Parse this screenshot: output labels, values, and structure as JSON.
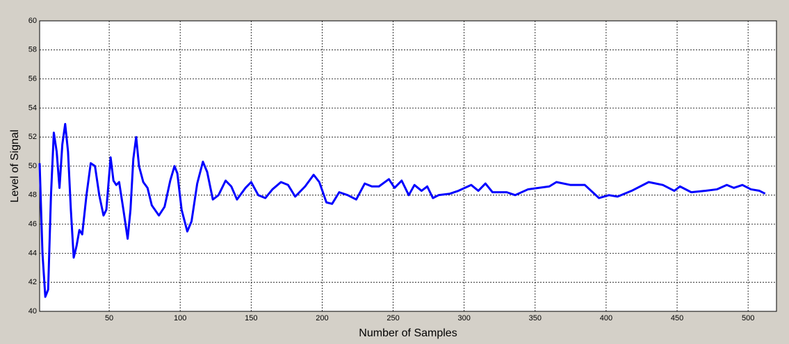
{
  "chart_data": {
    "type": "line",
    "x_label": "Number of Samples",
    "y_label": "Level of Signal",
    "x": [
      1,
      3,
      5,
      7,
      9,
      11,
      13,
      15,
      17,
      19,
      21,
      23,
      25,
      27,
      29,
      31,
      34,
      37,
      40,
      43,
      46,
      48,
      51,
      53,
      55,
      57,
      60,
      63,
      65,
      67,
      69,
      71,
      74,
      77,
      80,
      85,
      89,
      93,
      96,
      98,
      101,
      105,
      108,
      112,
      116,
      119,
      123,
      127,
      132,
      136,
      140,
      146,
      150,
      155,
      160,
      165,
      171,
      176,
      181,
      188,
      194,
      198,
      203,
      207,
      212,
      218,
      224,
      230,
      235,
      240,
      247,
      251,
      256,
      261,
      265,
      270,
      274,
      278,
      282,
      290,
      296,
      305,
      310,
      315,
      320,
      330,
      336,
      345,
      360,
      365,
      375,
      385,
      395,
      402,
      408,
      418,
      430,
      440,
      448,
      452,
      460,
      470,
      478,
      485,
      490,
      496,
      502,
      508,
      512
    ],
    "series": [
      {
        "name": "signal",
        "color": "#0000ff",
        "values": [
          50.2,
          44,
          41,
          41.5,
          48,
          52.3,
          51,
          48.5,
          51.5,
          52.9,
          51,
          47,
          43.7,
          44.5,
          45.6,
          45.3,
          48,
          50.2,
          50,
          48,
          46.6,
          47,
          50.6,
          49,
          48.7,
          48.9,
          47,
          45,
          47,
          50.5,
          52,
          50,
          48.9,
          48.5,
          47.3,
          46.6,
          47.2,
          49,
          50,
          49.5,
          47,
          45.5,
          46.2,
          48.8,
          50.3,
          49.6,
          47.7,
          48,
          49,
          48.6,
          47.7,
          48.5,
          48.9,
          48,
          47.8,
          48.4,
          48.9,
          48.7,
          47.9,
          48.6,
          49.4,
          48.9,
          47.5,
          47.4,
          48.2,
          48,
          47.7,
          48.8,
          48.6,
          48.6,
          49.1,
          48.5,
          49,
          48,
          48.7,
          48.3,
          48.6,
          47.8,
          48,
          48.1,
          48.3,
          48.7,
          48.3,
          48.8,
          48.2,
          48.2,
          48,
          48.4,
          48.6,
          48.9,
          48.7,
          48.7,
          47.8,
          48,
          47.9,
          48.3,
          48.9,
          48.7,
          48.3,
          48.6,
          48.2,
          48.3,
          48.4,
          48.7,
          48.5,
          48.7,
          48.4,
          48.3,
          48.1
        ]
      }
    ],
    "xlim": [
      1,
      520
    ],
    "ylim": [
      40,
      60
    ],
    "xticks": [
      50,
      100,
      150,
      200,
      250,
      300,
      350,
      400,
      450,
      500
    ],
    "yticks": [
      40,
      42,
      44,
      46,
      48,
      50,
      52,
      54,
      56,
      58,
      60
    ],
    "grid": true
  }
}
